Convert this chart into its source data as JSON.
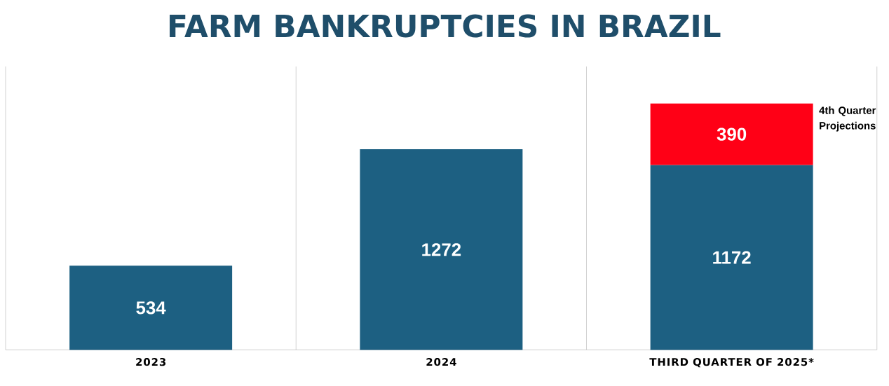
{
  "chart_data": {
    "type": "bar",
    "title": "FARM BANKRUPTCIES IN BRAZIL",
    "categories": [
      "2023",
      "2024",
      "THIRD QUARTER OF 2025*"
    ],
    "stacked": true,
    "data_labels": true,
    "grid": "x",
    "series": [
      {
        "color": "#1d6082",
        "values": [
          534,
          1272,
          1172
        ]
      },
      {
        "color": "#ff0016",
        "values": [
          null,
          null,
          390
        ]
      }
    ],
    "annotations": [
      "4th Quarter Projections"
    ]
  }
}
